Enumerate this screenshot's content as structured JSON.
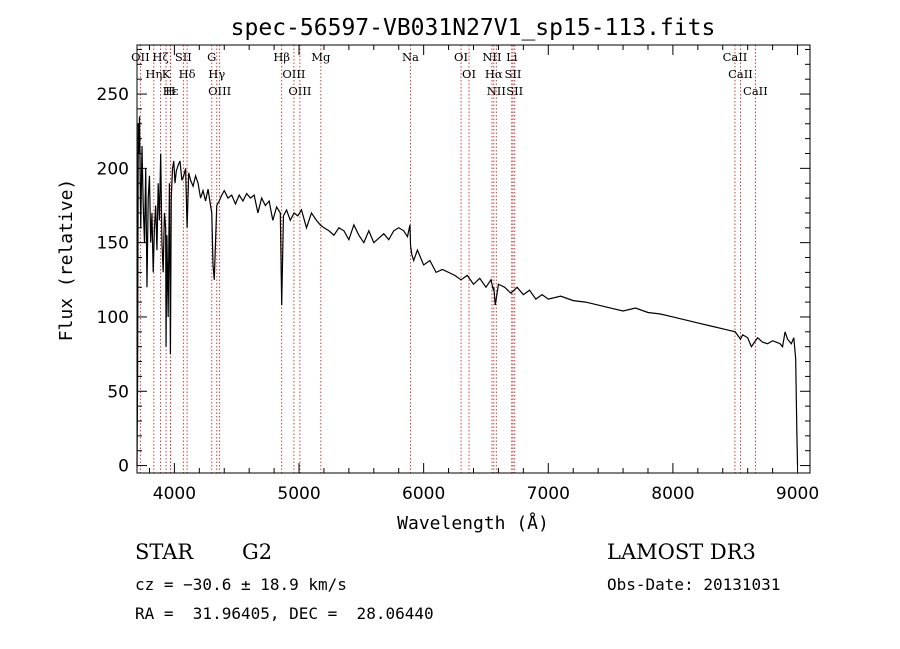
{
  "chart_data": {
    "type": "line",
    "title": "spec-56597-VB031N27V1_sp15-113.fits",
    "xlabel": "Wavelength (Å)",
    "ylabel": "Flux (relative)",
    "xlim": [
      3700,
      9100
    ],
    "ylim": [
      -5,
      283
    ],
    "xticks": [
      4000,
      5000,
      6000,
      7000,
      8000,
      9000
    ],
    "yticks": [
      0,
      50,
      100,
      150,
      200,
      250
    ],
    "xtick_labels": [
      "4000",
      "5000",
      "6000",
      "7000",
      "8000",
      "9000"
    ],
    "ytick_labels": [
      "0",
      "50",
      "100",
      "150",
      "200",
      "250"
    ],
    "series": [
      {
        "name": "spectrum",
        "x": [
          3700,
          3705,
          3710,
          3715,
          3720,
          3730,
          3740,
          3750,
          3760,
          3770,
          3780,
          3790,
          3800,
          3810,
          3820,
          3830,
          3840,
          3850,
          3860,
          3870,
          3880,
          3890,
          3900,
          3910,
          3920,
          3930,
          3933,
          3940,
          3950,
          3960,
          3968,
          3975,
          3985,
          3995,
          4005,
          4015,
          4030,
          4045,
          4060,
          4075,
          4090,
          4102,
          4115,
          4130,
          4150,
          4170,
          4190,
          4210,
          4230,
          4250,
          4270,
          4290,
          4300,
          4310,
          4320,
          4340,
          4360,
          4380,
          4400,
          4430,
          4460,
          4490,
          4520,
          4550,
          4580,
          4610,
          4640,
          4670,
          4700,
          4730,
          4760,
          4790,
          4820,
          4850,
          4861,
          4875,
          4900,
          4930,
          4960,
          4990,
          5020,
          5060,
          5100,
          5140,
          5170,
          5200,
          5240,
          5280,
          5320,
          5360,
          5400,
          5440,
          5480,
          5520,
          5560,
          5600,
          5640,
          5680,
          5720,
          5760,
          5800,
          5840,
          5870,
          5890,
          5895,
          5905,
          5920,
          5950,
          6000,
          6050,
          6100,
          6150,
          6200,
          6250,
          6300,
          6350,
          6400,
          6450,
          6500,
          6540,
          6560,
          6563,
          6575,
          6600,
          6650,
          6700,
          6750,
          6800,
          6850,
          6900,
          6950,
          7000,
          7100,
          7200,
          7300,
          7400,
          7500,
          7600,
          7700,
          7800,
          7900,
          8000,
          8100,
          8200,
          8300,
          8400,
          8450,
          8500,
          8542,
          8560,
          8600,
          8630,
          8662,
          8680,
          8720,
          8760,
          8800,
          8830,
          8860,
          8880,
          8900,
          8920,
          8950,
          8970,
          8985,
          8995,
          9000
        ],
        "values": [
          0,
          60,
          230,
          210,
          235,
          160,
          215,
          175,
          150,
          200,
          120,
          180,
          195,
          150,
          170,
          130,
          160,
          175,
          145,
          190,
          165,
          210,
          150,
          130,
          170,
          160,
          80,
          155,
          100,
          190,
          75,
          180,
          200,
          205,
          190,
          198,
          202,
          205,
          192,
          195,
          200,
          160,
          197,
          192,
          188,
          195,
          190,
          180,
          185,
          178,
          186,
          175,
          170,
          135,
          125,
          175,
          178,
          182,
          185,
          180,
          182,
          176,
          182,
          178,
          183,
          180,
          182,
          170,
          180,
          175,
          178,
          165,
          174,
          170,
          108,
          168,
          172,
          165,
          170,
          168,
          172,
          160,
          170,
          165,
          162,
          160,
          158,
          155,
          160,
          158,
          152,
          162,
          155,
          150,
          158,
          150,
          153,
          156,
          152,
          158,
          160,
          158,
          154,
          162,
          148,
          142,
          138,
          145,
          135,
          138,
          130,
          132,
          130,
          128,
          125,
          128,
          122,
          126,
          120,
          125,
          118,
          120,
          108,
          122,
          120,
          116,
          120,
          115,
          118,
          112,
          115,
          112,
          114,
          111,
          110,
          108,
          106,
          104,
          106,
          103,
          102,
          100,
          98,
          96,
          94,
          92,
          91,
          90,
          85,
          88,
          86,
          80,
          84,
          86,
          83,
          82,
          84,
          83,
          82,
          80,
          90,
          85,
          82,
          86,
          72,
          20,
          0
        ]
      }
    ],
    "lines": [
      {
        "wl": 3727,
        "label": "OII"
      },
      {
        "wl": 3835,
        "label": "Hη"
      },
      {
        "wl": 3889,
        "label": "Hζ"
      },
      {
        "wl": 3933,
        "label": "K"
      },
      {
        "wl": 3970,
        "label": "Hε"
      },
      {
        "wl": 3968,
        "label": "H"
      },
      {
        "wl": 4072,
        "label": "SII"
      },
      {
        "wl": 4102,
        "label": "Hδ"
      },
      {
        "wl": 4300,
        "label": "G"
      },
      {
        "wl": 4340,
        "label": "Hγ"
      },
      {
        "wl": 4363,
        "label": "OIII"
      },
      {
        "wl": 4861,
        "label": "Hβ"
      },
      {
        "wl": 4959,
        "label": "OIII"
      },
      {
        "wl": 5007,
        "label": "OIII"
      },
      {
        "wl": 5175,
        "label": "Mg"
      },
      {
        "wl": 5894,
        "label": "Na"
      },
      {
        "wl": 6300,
        "label": "OI"
      },
      {
        "wl": 6364,
        "label": "OI"
      },
      {
        "wl": 6548,
        "label": "NII"
      },
      {
        "wl": 6563,
        "label": "Hα"
      },
      {
        "wl": 6583,
        "label": "NII"
      },
      {
        "wl": 6707,
        "label": "Li"
      },
      {
        "wl": 6717,
        "label": "SII"
      },
      {
        "wl": 6731,
        "label": "SII"
      },
      {
        "wl": 8498,
        "label": "CaII"
      },
      {
        "wl": 8542,
        "label": "CaII"
      },
      {
        "wl": 8662,
        "label": "CaII"
      }
    ]
  },
  "info": {
    "class": "STAR",
    "subclass": "G2",
    "velocity": "cz = −30.6 ± 18.9 km/s",
    "coords": "RA =  31.96405, DEC =  28.06440",
    "survey": "LAMOST DR3",
    "obs_date": "Obs-Date: 20131031"
  }
}
